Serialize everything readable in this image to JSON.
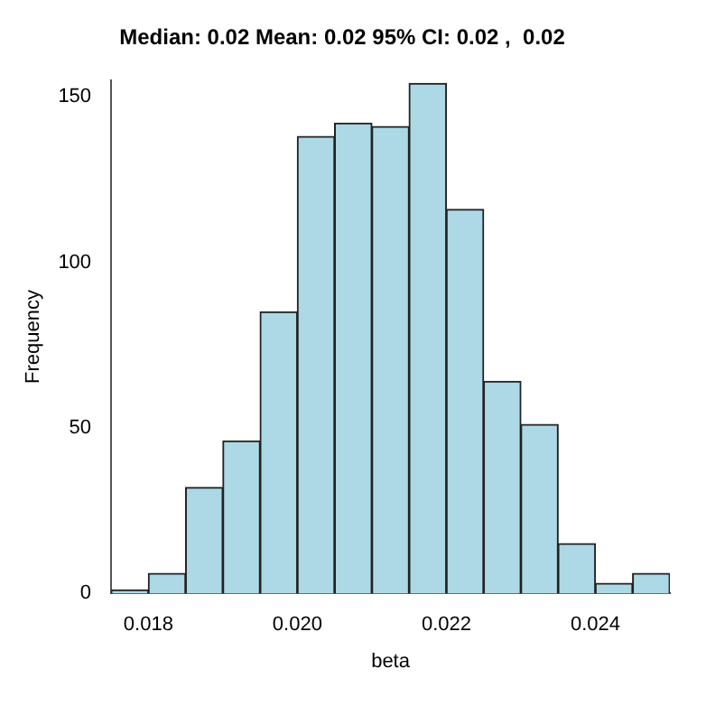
{
  "chart_data": {
    "type": "histogram",
    "title": "Median: 0.02 Mean: 0.02 95% CI: 0.02 ,  0.02",
    "xlabel": "beta",
    "ylabel": "Frequency",
    "bins": [
      0.0175,
      0.018,
      0.0185,
      0.019,
      0.0195,
      0.02,
      0.0205,
      0.021,
      0.0215,
      0.022,
      0.0225,
      0.023,
      0.0235,
      0.024,
      0.0245,
      0.025
    ],
    "values": [
      1,
      6,
      32,
      46,
      85,
      138,
      142,
      141,
      154,
      116,
      64,
      51,
      15,
      3,
      6
    ],
    "color": "#add8e6",
    "xlim": [
      0.0175,
      0.025
    ],
    "xticks": [
      {
        "value": 0.018,
        "label": "0.018"
      },
      {
        "value": 0.02,
        "label": "0.020"
      },
      {
        "value": 0.022,
        "label": "0.022"
      },
      {
        "value": 0.024,
        "label": "0.024"
      }
    ],
    "ylim": [
      0,
      155
    ],
    "yticks": [
      0,
      50,
      100,
      150
    ],
    "grid": false,
    "legend": false
  }
}
